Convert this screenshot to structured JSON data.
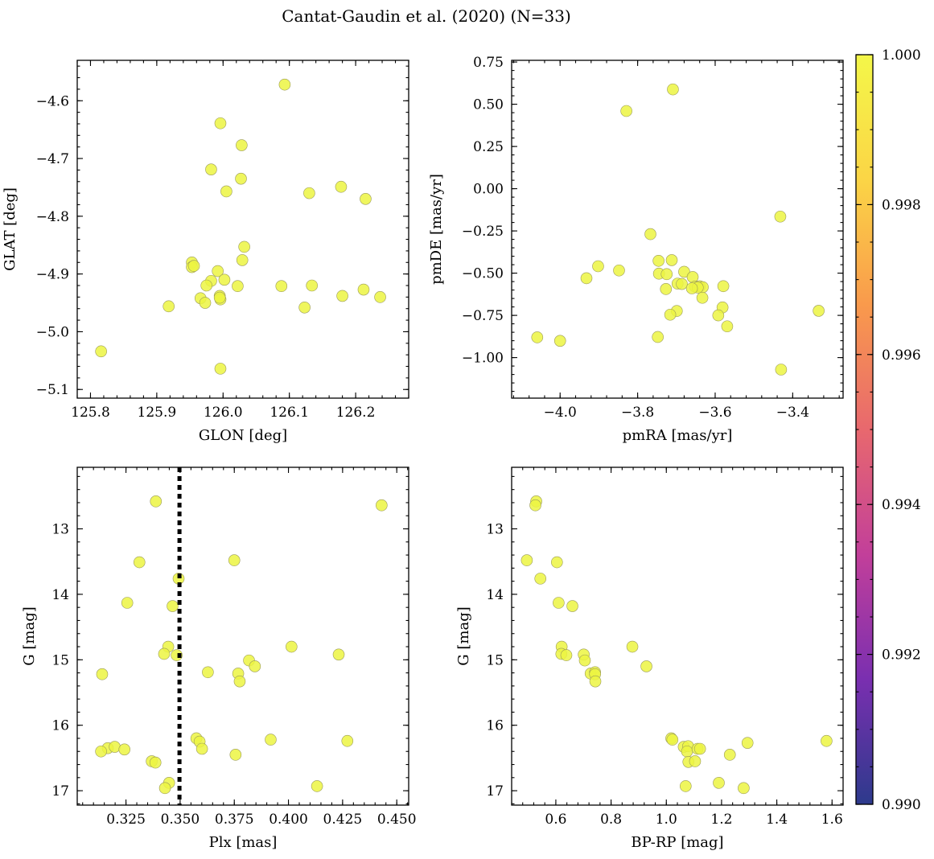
{
  "figure": {
    "title": "Cantat-Gaudin et al. (2020) (N=33)",
    "point_color": "#ecf542",
    "colormap": [
      "#2d3a8c",
      "#7a2fb0",
      "#c23f9a",
      "#e8686e",
      "#f99a4c",
      "#fbd546",
      "#f4f749"
    ]
  },
  "colorbar": {
    "min": 0.99,
    "max": 1.0,
    "tick_values": [
      0.99,
      0.992,
      0.994,
      0.996,
      0.998,
      1.0
    ],
    "tick_labels": [
      "0.990",
      "0.992",
      "0.994",
      "0.996",
      "0.998",
      "1.000"
    ]
  },
  "chart_data": [
    {
      "type": "scatter",
      "xlabel": "GLON [deg]",
      "ylabel": "GLAT [deg]",
      "xlim": [
        125.78,
        126.28
      ],
      "ylim": [
        -5.115,
        -4.53
      ],
      "y_inverted": false,
      "xticks": [
        125.8,
        125.9,
        126.0,
        126.1,
        126.2
      ],
      "xtick_labels": [
        "125.8",
        "125.9",
        "126.0",
        "126.1",
        "126.2"
      ],
      "yticks": [
        -5.1,
        -5.0,
        -4.9,
        -4.8,
        -4.7,
        -4.6
      ],
      "ytick_labels": [
        "−5.1",
        "−5.0",
        "−4.9",
        "−4.8",
        "−4.7",
        "−4.6"
      ],
      "points": [
        [
          126.093,
          -4.572
        ],
        [
          125.996,
          -4.639
        ],
        [
          126.028,
          -4.677
        ],
        [
          125.982,
          -4.719
        ],
        [
          126.027,
          -4.735
        ],
        [
          126.005,
          -4.757
        ],
        [
          126.13,
          -4.76
        ],
        [
          126.178,
          -4.749
        ],
        [
          126.215,
          -4.77
        ],
        [
          126.032,
          -4.853
        ],
        [
          125.953,
          -4.88
        ],
        [
          125.953,
          -4.888
        ],
        [
          126.029,
          -4.876
        ],
        [
          125.992,
          -4.895
        ],
        [
          125.982,
          -4.912
        ],
        [
          126.002,
          -4.91
        ],
        [
          125.975,
          -4.92
        ],
        [
          126.022,
          -4.921
        ],
        [
          126.088,
          -4.921
        ],
        [
          126.134,
          -4.92
        ],
        [
          126.212,
          -4.927
        ],
        [
          125.995,
          -4.938
        ],
        [
          125.996,
          -4.944
        ],
        [
          125.966,
          -4.942
        ],
        [
          125.973,
          -4.95
        ],
        [
          126.18,
          -4.938
        ],
        [
          126.237,
          -4.94
        ],
        [
          125.918,
          -4.956
        ],
        [
          126.123,
          -4.958
        ],
        [
          125.816,
          -5.034
        ],
        [
          125.996,
          -5.064
        ],
        [
          125.995,
          -4.941
        ],
        [
          125.956,
          -4.886
        ]
      ]
    },
    {
      "type": "scatter",
      "xlabel": "pmRA [mas/yr]",
      "ylabel": "pmDE [mas/yr]",
      "xlim": [
        -4.125,
        -3.27
      ],
      "ylim": [
        -1.24,
        0.76
      ],
      "y_inverted": false,
      "xticks": [
        -4.0,
        -3.8,
        -3.6,
        -3.4
      ],
      "xtick_labels": [
        "−4.0",
        "−3.8",
        "−3.6",
        "−3.4"
      ],
      "yticks": [
        -1.0,
        -0.75,
        -0.5,
        -0.25,
        0.0,
        0.25,
        0.5,
        0.75
      ],
      "ytick_labels": [
        "−1.00",
        "−0.75",
        "−0.50",
        "−0.25",
        "0.00",
        "0.25",
        "0.50",
        "0.75"
      ],
      "points": [
        [
          -3.709,
          0.588
        ],
        [
          -3.829,
          0.46
        ],
        [
          -3.432,
          -0.165
        ],
        [
          -3.767,
          -0.269
        ],
        [
          -3.746,
          -0.427
        ],
        [
          -3.712,
          -0.423
        ],
        [
          -3.902,
          -0.459
        ],
        [
          -3.848,
          -0.484
        ],
        [
          -3.745,
          -0.503
        ],
        [
          -3.725,
          -0.506
        ],
        [
          -3.68,
          -0.492
        ],
        [
          -3.932,
          -0.53
        ],
        [
          -3.658,
          -0.523
        ],
        [
          -3.697,
          -0.562
        ],
        [
          -3.686,
          -0.564
        ],
        [
          -3.652,
          -0.58
        ],
        [
          -3.64,
          -0.578
        ],
        [
          -3.632,
          -0.583
        ],
        [
          -3.579,
          -0.577
        ],
        [
          -3.727,
          -0.594
        ],
        [
          -3.633,
          -0.646
        ],
        [
          -3.581,
          -0.703
        ],
        [
          -3.699,
          -0.724
        ],
        [
          -3.716,
          -0.746
        ],
        [
          -3.592,
          -0.75
        ],
        [
          -3.333,
          -0.723
        ],
        [
          -3.569,
          -0.815
        ],
        [
          -4.059,
          -0.88
        ],
        [
          -3.748,
          -0.878
        ],
        [
          -4.0,
          -0.901
        ],
        [
          -3.43,
          -1.071
        ],
        [
          -3.645,
          -0.585
        ],
        [
          -3.66,
          -0.59
        ]
      ]
    },
    {
      "type": "scatter",
      "xlabel": "Plx [mas]",
      "ylabel": "G [mag]",
      "xlim": [
        0.3025,
        0.4555
      ],
      "ylim": [
        12.06,
        17.22
      ],
      "y_inverted": true,
      "vline": 0.3497,
      "xticks": [
        0.325,
        0.35,
        0.375,
        0.4,
        0.425,
        0.45
      ],
      "xtick_labels": [
        "0.325",
        "0.350",
        "0.375",
        "0.400",
        "0.425",
        "0.450"
      ],
      "yticks": [
        13,
        14,
        15,
        16,
        17
      ],
      "ytick_labels": [
        "13",
        "14",
        "15",
        "16",
        "17"
      ],
      "points": [
        [
          0.3388,
          12.58
        ],
        [
          0.443,
          12.64
        ],
        [
          0.3312,
          13.51
        ],
        [
          0.375,
          13.48
        ],
        [
          0.3493,
          13.76
        ],
        [
          0.3256,
          14.13
        ],
        [
          0.3465,
          14.18
        ],
        [
          0.3445,
          14.8
        ],
        [
          0.4014,
          14.8
        ],
        [
          0.3426,
          14.91
        ],
        [
          0.3484,
          14.93
        ],
        [
          0.4232,
          14.92
        ],
        [
          0.314,
          15.22
        ],
        [
          0.3628,
          15.19
        ],
        [
          0.3768,
          15.21
        ],
        [
          0.3818,
          15.01
        ],
        [
          0.3845,
          15.1
        ],
        [
          0.3775,
          15.33
        ],
        [
          0.3575,
          16.2
        ],
        [
          0.359,
          16.25
        ],
        [
          0.3601,
          16.36
        ],
        [
          0.3918,
          16.22
        ],
        [
          0.4272,
          16.24
        ],
        [
          0.3166,
          16.35
        ],
        [
          0.3198,
          16.33
        ],
        [
          0.3135,
          16.4
        ],
        [
          0.3243,
          16.37
        ],
        [
          0.3756,
          16.45
        ],
        [
          0.3369,
          16.55
        ],
        [
          0.3386,
          16.57
        ],
        [
          0.3449,
          16.88
        ],
        [
          0.343,
          16.96
        ],
        [
          0.4132,
          16.93
        ]
      ]
    },
    {
      "type": "scatter",
      "xlabel": "BP-RP [mag]",
      "ylabel": "G [mag]",
      "xlim": [
        0.44,
        1.64
      ],
      "ylim": [
        12.06,
        17.22
      ],
      "y_inverted": true,
      "xticks": [
        0.6,
        0.8,
        1.0,
        1.2,
        1.4,
        1.6
      ],
      "xtick_labels": [
        "0.6",
        "0.8",
        "1.0",
        "1.2",
        "1.4",
        "1.6"
      ],
      "yticks": [
        13,
        14,
        15,
        16,
        17
      ],
      "ytick_labels": [
        "13",
        "14",
        "15",
        "16",
        "17"
      ],
      "points": [
        [
          0.529,
          12.58
        ],
        [
          0.526,
          12.64
        ],
        [
          0.495,
          13.48
        ],
        [
          0.604,
          13.51
        ],
        [
          0.544,
          13.76
        ],
        [
          0.61,
          14.13
        ],
        [
          0.66,
          14.18
        ],
        [
          0.621,
          14.8
        ],
        [
          0.877,
          14.8
        ],
        [
          0.62,
          14.91
        ],
        [
          0.638,
          14.93
        ],
        [
          0.701,
          14.92
        ],
        [
          0.705,
          15.01
        ],
        [
          0.928,
          15.1
        ],
        [
          0.726,
          15.21
        ],
        [
          0.742,
          15.19
        ],
        [
          0.742,
          15.22
        ],
        [
          0.743,
          15.33
        ],
        [
          1.018,
          16.2
        ],
        [
          1.022,
          16.22
        ],
        [
          1.063,
          16.33
        ],
        [
          1.079,
          16.32
        ],
        [
          1.075,
          16.4
        ],
        [
          1.113,
          16.36
        ],
        [
          1.122,
          16.36
        ],
        [
          1.23,
          16.45
        ],
        [
          1.294,
          16.27
        ],
        [
          1.58,
          16.24
        ],
        [
          1.08,
          16.56
        ],
        [
          1.104,
          16.55
        ],
        [
          1.19,
          16.88
        ],
        [
          1.07,
          16.93
        ],
        [
          1.28,
          16.96
        ]
      ]
    }
  ]
}
